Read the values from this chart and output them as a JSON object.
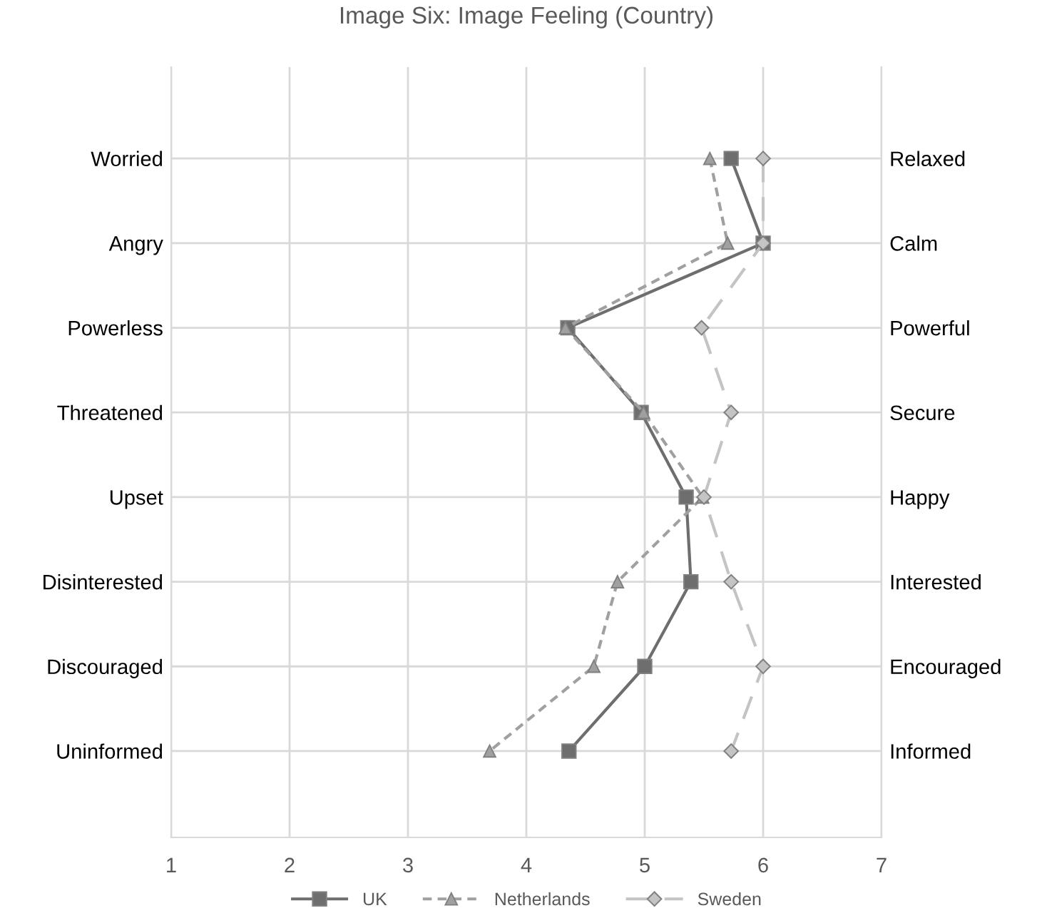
{
  "chart_data": {
    "type": "line",
    "orientation": "horizontal",
    "title": "Image Six: Image Feeling (Country)",
    "categories": [
      "Worried",
      "Angry",
      "Powerless",
      "Threatened",
      "Upset",
      "Disinterested",
      "Discouraged",
      "Uninformed"
    ],
    "y2_categories": [
      "Relaxed",
      "Calm",
      "Powerful",
      "Secure",
      "Happy",
      "Interested",
      "Encouraged",
      "Informed"
    ],
    "series": [
      {
        "name": "UK",
        "color": "#6e6e6e",
        "marker": "square",
        "line_style": "solid",
        "values": [
          5.73,
          6.0,
          4.35,
          4.97,
          5.35,
          5.39,
          5.0,
          4.36
        ]
      },
      {
        "name": "Netherlands",
        "color": "#a0a0a0",
        "marker": "triangle",
        "line_style": "dotted",
        "values": [
          5.55,
          5.7,
          4.33,
          4.99,
          5.49,
          4.77,
          4.57,
          3.69
        ]
      },
      {
        "name": "Sweden",
        "color": "#c4c4c4",
        "marker": "diamond",
        "line_style": "dashed",
        "values": [
          6.0,
          6.0,
          5.48,
          5.73,
          5.5,
          5.73,
          6.0,
          5.73
        ]
      }
    ],
    "xlim": [
      1,
      7
    ],
    "xticks": [
      1,
      2,
      3,
      4,
      5,
      6,
      7
    ],
    "grid": true,
    "legend": "bottom"
  }
}
